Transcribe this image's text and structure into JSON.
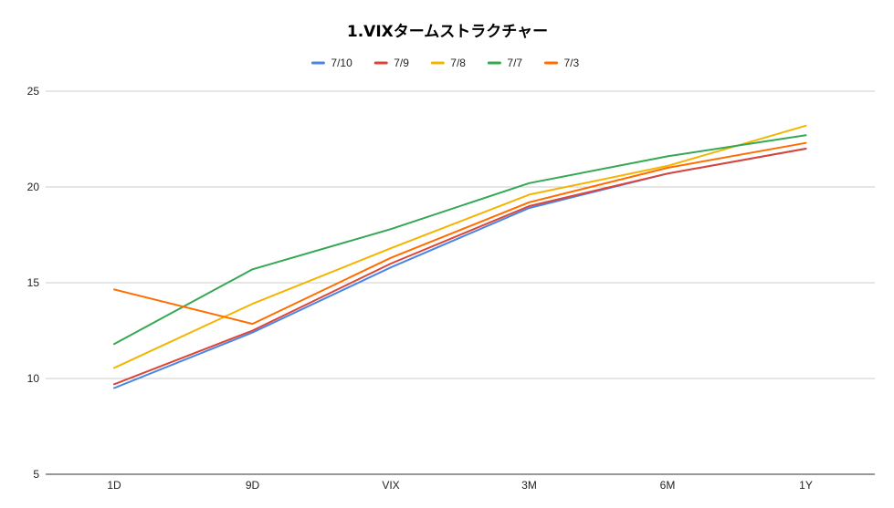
{
  "chart_data": {
    "type": "line",
    "title": "1.VIXタームストラクチャー",
    "xlabel": "",
    "ylabel": "",
    "categories": [
      "1D",
      "9D",
      "VIX",
      "3M",
      "6M",
      "1Y"
    ],
    "ylim": [
      5,
      25
    ],
    "yticks": [
      5,
      10,
      15,
      20,
      25
    ],
    "grid": true,
    "legend_position": "top",
    "series": [
      {
        "name": "7/10",
        "color": "#4a86e8",
        "values": [
          9.5,
          12.4,
          15.8,
          18.9,
          20.7,
          22.0
        ]
      },
      {
        "name": "7/9",
        "color": "#dc4437",
        "values": [
          9.7,
          12.5,
          16.0,
          19.0,
          20.7,
          22.0
        ]
      },
      {
        "name": "7/8",
        "color": "#f4b400",
        "values": [
          10.55,
          13.9,
          16.8,
          19.6,
          21.1,
          23.2
        ]
      },
      {
        "name": "7/7",
        "color": "#34a853",
        "values": [
          11.8,
          15.7,
          17.8,
          20.2,
          21.6,
          22.7
        ]
      },
      {
        "name": "7/3",
        "color": "#ff6d00",
        "values": [
          14.65,
          12.85,
          16.3,
          19.2,
          21.0,
          22.3
        ]
      }
    ]
  }
}
